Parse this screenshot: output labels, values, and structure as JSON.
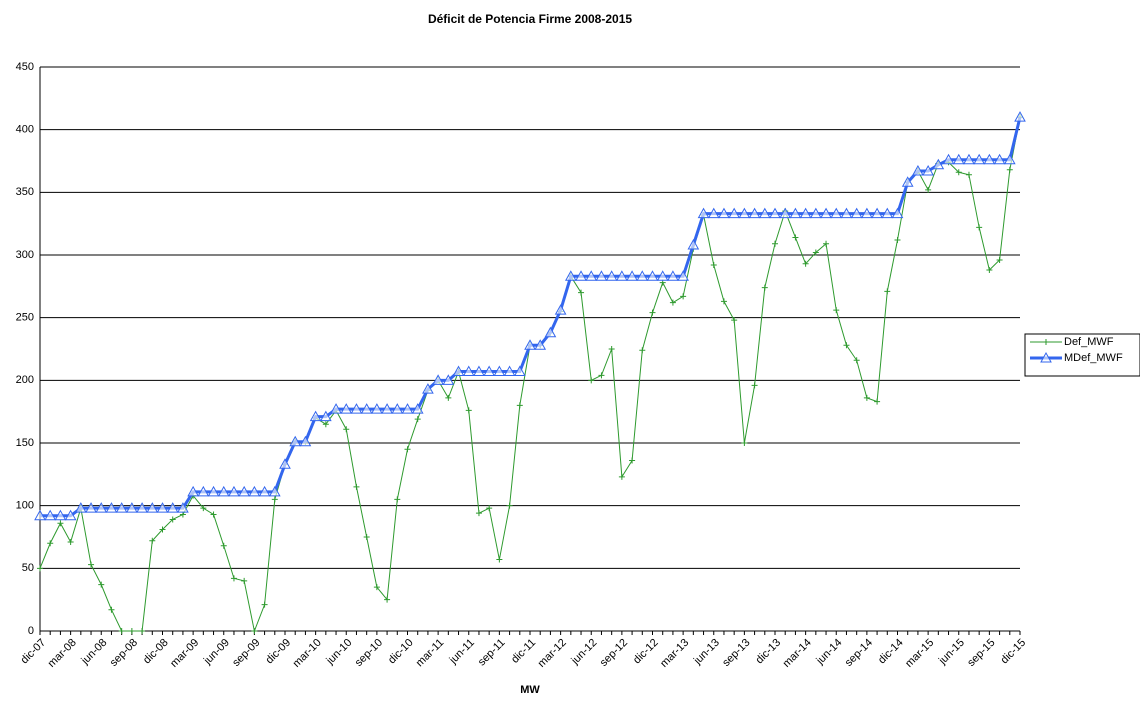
{
  "chart_data": {
    "type": "line",
    "title": "Déficit de Potencia Firme 2008-2015",
    "x_label": "MW",
    "categories": [
      "dic-07",
      null,
      null,
      "mar-08",
      null,
      null,
      "jun-08",
      null,
      null,
      "sep-08",
      null,
      null,
      "dic-08",
      null,
      null,
      "mar-09",
      null,
      null,
      "jun-09",
      null,
      null,
      "sep-09",
      null,
      null,
      "dic-09",
      null,
      null,
      "mar-10",
      null,
      null,
      "jun-10",
      null,
      null,
      "sep-10",
      null,
      null,
      "dic-10",
      null,
      null,
      "mar-11",
      null,
      null,
      "jun-11",
      null,
      null,
      "sep-11",
      null,
      null,
      "dic-11",
      null,
      null,
      "mar-12",
      null,
      null,
      "jun-12",
      null,
      null,
      "sep-12",
      null,
      null,
      "dic-12",
      null,
      null,
      "mar-13",
      null,
      null,
      "jun-13",
      null,
      null,
      "sep-13",
      null,
      null,
      "dic-13",
      null,
      null,
      "mar-14",
      null,
      null,
      "jun-14",
      null,
      null,
      "sep-14",
      null,
      null,
      "dic-14",
      null,
      null,
      "mar-15",
      null,
      null,
      "jun-15",
      null,
      null,
      "sep-15",
      null,
      null,
      "dic-15"
    ],
    "series": [
      {
        "name": "Def_MWF",
        "color": "#2e9a2e",
        "marker": "plus",
        "values": [
          50,
          70,
          86,
          71,
          98,
          53,
          37,
          17,
          0,
          0,
          0,
          72,
          81,
          89,
          93,
          108,
          98,
          93,
          68,
          42,
          40,
          0,
          21,
          105,
          133,
          151,
          151,
          170,
          165,
          176,
          161,
          115,
          75,
          35,
          25,
          105,
          145,
          169,
          192,
          200,
          186,
          207,
          176,
          94,
          98,
          57,
          100,
          180,
          228,
          228,
          238,
          255,
          283,
          270,
          200,
          204,
          225,
          123,
          136,
          224,
          254,
          278,
          262,
          267,
          305,
          332,
          292,
          263,
          248,
          150,
          196,
          274,
          309,
          335,
          314,
          293,
          302,
          309,
          256,
          228,
          216,
          186,
          183,
          271,
          312,
          358,
          367,
          352,
          373,
          374,
          366,
          364,
          322,
          288,
          296,
          368,
          410
        ]
      },
      {
        "name": "MDef_MWF",
        "color": "#3366ee",
        "marker": "triangle",
        "values": [
          92,
          92,
          92,
          92,
          98,
          98,
          98,
          98,
          98,
          98,
          98,
          98,
          98,
          98,
          98,
          111,
          111,
          111,
          111,
          111,
          111,
          111,
          111,
          111,
          133,
          151,
          151,
          171,
          171,
          177,
          177,
          177,
          177,
          177,
          177,
          177,
          177,
          177,
          193,
          200,
          200,
          207,
          207,
          207,
          207,
          207,
          207,
          207,
          228,
          228,
          238,
          256,
          283,
          283,
          283,
          283,
          283,
          283,
          283,
          283,
          283,
          283,
          283,
          283,
          308,
          333,
          333,
          333,
          333,
          333,
          333,
          333,
          333,
          333,
          333,
          333,
          333,
          333,
          333,
          333,
          333,
          333,
          333,
          333,
          333,
          358,
          367,
          367,
          372,
          376,
          376,
          376,
          376,
          376,
          376,
          376,
          410
        ]
      }
    ],
    "ylim": [
      0,
      450
    ],
    "yticks": [
      0,
      50,
      100,
      150,
      200,
      250,
      300,
      350,
      400,
      450
    ],
    "grid": true,
    "legend": "right"
  }
}
